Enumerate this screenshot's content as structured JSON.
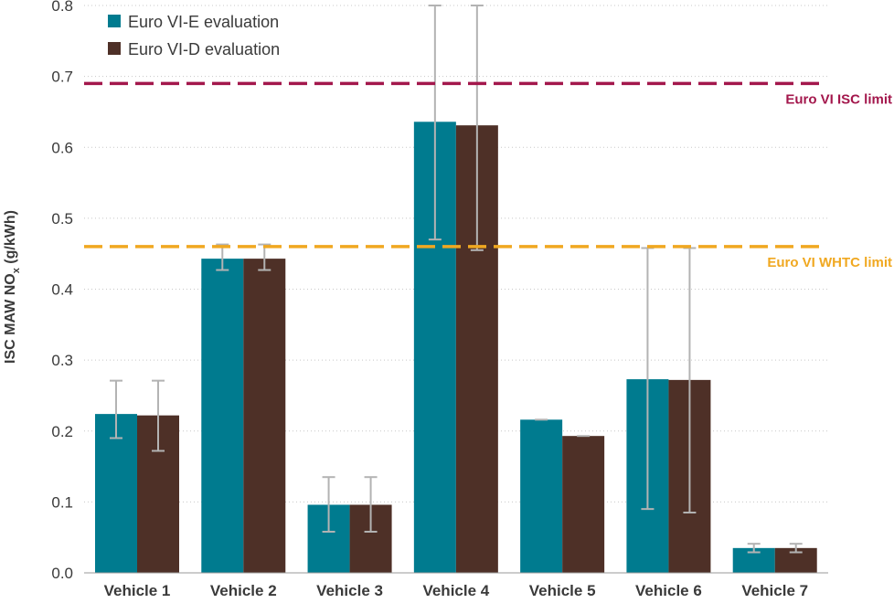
{
  "chart_data": {
    "type": "bar",
    "ylabel": "ISC MAW NO",
    "ylabel_sub": "x",
    "ylabel_unit": "(g/kWh)",
    "ylim": [
      0,
      0.8
    ],
    "yticks": [
      "0.0",
      "0.1",
      "0.2",
      "0.3",
      "0.4",
      "0.5",
      "0.6",
      "0.7",
      "0.8"
    ],
    "ytick_values": [
      0,
      0.1,
      0.2,
      0.3,
      0.4,
      0.5,
      0.6,
      0.7,
      0.8
    ],
    "grid": "horizontal-dotted",
    "legend_position": "top-left",
    "categories": [
      "Vehicle 1",
      "Vehicle 2",
      "Vehicle 3",
      "Vehicle 4",
      "Vehicle 5",
      "Vehicle 6",
      "Vehicle 7"
    ],
    "series": [
      {
        "name": "Euro VI-E evaluation",
        "color": "#007b8f",
        "values": [
          0.224,
          0.443,
          0.096,
          0.636,
          0.216,
          0.273,
          0.035
        ],
        "err_low": [
          0.19,
          0.427,
          0.058,
          0.47,
          0.216,
          0.09,
          0.029
        ],
        "err_high": [
          0.271,
          0.463,
          0.135,
          0.8,
          0.216,
          0.458,
          0.041
        ]
      },
      {
        "name": "Euro VI-D evaluation",
        "color": "#4e3027",
        "values": [
          0.222,
          0.443,
          0.096,
          0.631,
          0.193,
          0.272,
          0.035
        ],
        "err_low": [
          0.172,
          0.427,
          0.058,
          0.455,
          0.193,
          0.085,
          0.029
        ],
        "err_high": [
          0.271,
          0.463,
          0.135,
          0.8,
          0.193,
          0.458,
          0.041
        ]
      }
    ],
    "reference_lines": [
      {
        "label": "Euro VI ISC limit",
        "value": 0.69,
        "color": "#a3174c"
      },
      {
        "label": "Euro VI WHTC limit",
        "value": 0.46,
        "color": "#f0a821"
      }
    ],
    "error_bar_color": "#b3b3b3"
  }
}
